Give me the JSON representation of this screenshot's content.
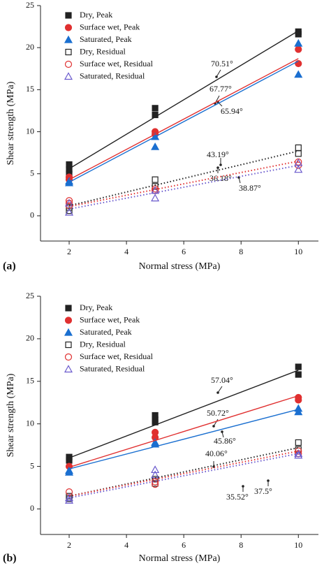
{
  "chart_data": [
    {
      "type": "scatter",
      "panel_label": "(a)",
      "xlabel": "Normal stress (MPa)",
      "ylabel": "Shear strength (MPa)",
      "xlim": [
        1,
        10.7
      ],
      "ylim": [
        -3,
        25
      ],
      "xticks": [
        2,
        4,
        6,
        8,
        10
      ],
      "yticks": [
        0,
        5,
        10,
        15,
        20,
        25
      ],
      "legend": "upper left",
      "series": [
        {
          "name": "Dry, Peak",
          "color": "#222222",
          "marker": "square",
          "filled": true,
          "line_style": "solid",
          "x": [
            2,
            2,
            2,
            5,
            5,
            10,
            10
          ],
          "y": [
            6.1,
            5.5,
            5.0,
            12.8,
            12.0,
            21.9,
            21.6
          ],
          "fit": {
            "x": [
              2,
              10
            ],
            "y": [
              5.6,
              22.0
            ]
          }
        },
        {
          "name": "Surface wet, Peak",
          "color": "#e03030",
          "marker": "circle",
          "filled": true,
          "line_style": "solid",
          "x": [
            2,
            2,
            5,
            5,
            10,
            10
          ],
          "y": [
            4.6,
            4.3,
            10.0,
            9.7,
            19.8,
            18.1
          ],
          "fit": {
            "x": [
              2,
              10
            ],
            "y": [
              4.3,
              18.7
            ]
          }
        },
        {
          "name": "Saturated, Peak",
          "color": "#1a6fd0",
          "marker": "triangle",
          "filled": true,
          "line_style": "solid",
          "x": [
            2,
            2,
            5,
            5,
            10,
            10
          ],
          "y": [
            4.1,
            3.9,
            9.4,
            8.2,
            20.5,
            16.8
          ],
          "fit": {
            "x": [
              2,
              10
            ],
            "y": [
              4.0,
              18.4
            ]
          }
        },
        {
          "name": "Dry, Residual",
          "color": "#222222",
          "marker": "square",
          "filled": false,
          "line_style": "dotted",
          "x": [
            2,
            2,
            5,
            5,
            10,
            10
          ],
          "y": [
            1.0,
            0.6,
            4.3,
            3.5,
            8.1,
            7.4
          ],
          "fit": {
            "x": [
              2,
              10
            ],
            "y": [
              1.2,
              7.7
            ]
          }
        },
        {
          "name": "Surface wet, Residual",
          "color": "#e03030",
          "marker": "circle",
          "filled": false,
          "line_style": "dotted",
          "x": [
            2,
            2,
            2,
            5,
            5,
            10,
            10
          ],
          "y": [
            1.8,
            1.5,
            1.2,
            3.2,
            3.0,
            6.4,
            6.0
          ],
          "fit": {
            "x": [
              2,
              10
            ],
            "y": [
              1.1,
              6.5
            ]
          }
        },
        {
          "name": "Saturated, Residual",
          "color": "#6a5acd",
          "marker": "triangle",
          "filled": false,
          "line_style": "dotted",
          "x": [
            2,
            2,
            5,
            5,
            10,
            10
          ],
          "y": [
            1.5,
            0.4,
            3.0,
            2.1,
            6.3,
            5.5
          ],
          "fit": {
            "x": [
              2,
              10
            ],
            "y": [
              0.8,
              6.0
            ]
          }
        }
      ],
      "annotations": [
        "70.51°",
        "67.77°",
        "65.94°",
        "43.19°",
        "36.18°",
        "38.87°"
      ]
    },
    {
      "type": "scatter",
      "panel_label": "(b)",
      "xlabel": "Normal stress (MPa)",
      "ylabel": "Shear strength (MPa)",
      "xlim": [
        1,
        10.7
      ],
      "ylim": [
        -3,
        25
      ],
      "xticks": [
        2,
        4,
        6,
        8,
        10
      ],
      "yticks": [
        0,
        5,
        10,
        15,
        20,
        25
      ],
      "legend": "upper left",
      "series": [
        {
          "name": "Dry, Peak",
          "color": "#222222",
          "marker": "square",
          "filled": true,
          "line_style": "solid",
          "x": [
            2,
            2,
            5,
            5,
            5,
            10,
            10
          ],
          "y": [
            6.1,
            5.7,
            11.0,
            10.5,
            10.2,
            16.7,
            15.8
          ],
          "fit": {
            "x": [
              2,
              10
            ],
            "y": [
              6.0,
              16.3
            ]
          }
        },
        {
          "name": "Surface wet, Peak",
          "color": "#e03030",
          "marker": "circle",
          "filled": true,
          "line_style": "solid",
          "x": [
            2,
            5,
            5,
            10,
            10
          ],
          "y": [
            5.0,
            9.0,
            8.4,
            13.1,
            12.8
          ],
          "fit": {
            "x": [
              2,
              10
            ],
            "y": [
              4.9,
              13.3
            ]
          }
        },
        {
          "name": "Saturated, Peak",
          "color": "#1a6fd0",
          "marker": "triangle",
          "filled": true,
          "line_style": "solid",
          "x": [
            2,
            2,
            5,
            5,
            10,
            10
          ],
          "y": [
            4.5,
            4.3,
            7.8,
            7.6,
            11.8,
            11.4
          ],
          "fit": {
            "x": [
              2,
              10
            ],
            "y": [
              4.7,
              11.7
            ]
          }
        },
        {
          "name": "Dry, Residual",
          "color": "#222222",
          "marker": "square",
          "filled": false,
          "line_style": "dotted",
          "x": [
            2,
            2,
            5,
            5,
            10,
            10
          ],
          "y": [
            1.5,
            1.2,
            3.5,
            3.0,
            7.8,
            7.0
          ],
          "fit": {
            "x": [
              2,
              10
            ],
            "y": [
              1.5,
              7.2
            ]
          }
        },
        {
          "name": "Surface wet, Residual",
          "color": "#e03030",
          "marker": "circle",
          "filled": false,
          "line_style": "dotted",
          "x": [
            2,
            5,
            5,
            10,
            10
          ],
          "y": [
            2.0,
            3.2,
            2.9,
            6.8,
            6.5
          ],
          "fit": {
            "x": [
              2,
              10
            ],
            "y": [
              1.5,
              6.8
            ]
          }
        },
        {
          "name": "Saturated, Residual",
          "color": "#6a5acd",
          "marker": "triangle",
          "filled": false,
          "line_style": "dotted",
          "x": [
            2,
            2,
            5,
            5,
            10,
            10
          ],
          "y": [
            1.3,
            1.0,
            4.6,
            4.0,
            6.5,
            6.3
          ],
          "fit": {
            "x": [
              2,
              10
            ],
            "y": [
              1.3,
              6.5
            ]
          }
        }
      ],
      "annotations": [
        "57.04°",
        "50.72°",
        "45.86°",
        "40.06°",
        "35.52°",
        "37.5°"
      ]
    }
  ]
}
